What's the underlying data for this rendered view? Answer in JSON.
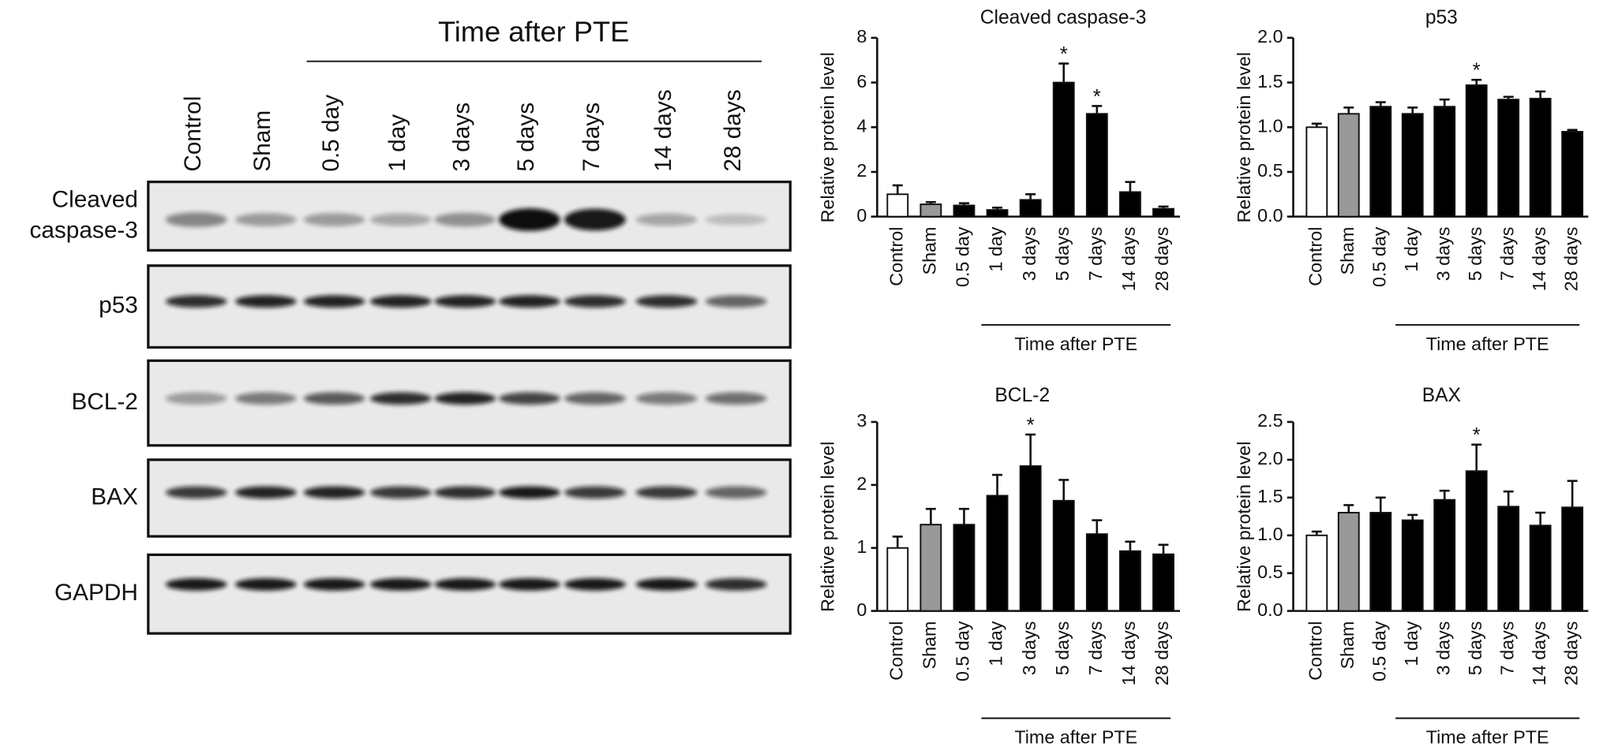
{
  "blot": {
    "header": "Time after PTE",
    "lanes": [
      "Control",
      "Sham",
      "0.5 day",
      "1 day",
      "3 days",
      "5 days",
      "7 days",
      "14 days",
      "28 days"
    ],
    "rows": [
      [
        "Cleaved",
        "caspase-3"
      ],
      [
        "p53"
      ],
      [
        "BCL-2"
      ],
      [
        "BAX"
      ],
      [
        "GAPDH"
      ]
    ]
  },
  "chart_data": [
    {
      "type": "bar",
      "title": "Cleaved caspase-3",
      "ylabel": "Relative protein level",
      "xlabel": "Time after PTE",
      "categories": [
        "Control",
        "Sham",
        "0.5 day",
        "1 day",
        "3 days",
        "5 days",
        "7 days",
        "14 days",
        "28 days"
      ],
      "values": [
        1.0,
        0.55,
        0.5,
        0.3,
        0.75,
        6.0,
        4.6,
        1.1,
        0.35
      ],
      "errors": [
        0.4,
        0.1,
        0.1,
        0.1,
        0.25,
        0.85,
        0.35,
        0.45,
        0.1
      ],
      "colors": [
        "#ffffff",
        "#999999",
        "#000000",
        "#000000",
        "#000000",
        "#000000",
        "#000000",
        "#000000",
        "#000000"
      ],
      "ylim": [
        0,
        8
      ],
      "yticks": [
        0,
        2,
        4,
        6,
        8
      ],
      "annotations": [
        {
          "text": "*",
          "category": "5 days"
        },
        {
          "text": "*",
          "category": "7 days"
        }
      ]
    },
    {
      "type": "bar",
      "title": "p53",
      "ylabel": "Relative protein level",
      "xlabel": "Time after PTE",
      "categories": [
        "Control",
        "Sham",
        "0.5 day",
        "1 day",
        "3 days",
        "5 days",
        "7 days",
        "14 days",
        "28 days"
      ],
      "values": [
        1.0,
        1.15,
        1.23,
        1.15,
        1.23,
        1.47,
        1.31,
        1.32,
        0.95
      ],
      "errors": [
        0.04,
        0.07,
        0.05,
        0.07,
        0.08,
        0.06,
        0.03,
        0.08,
        0.02
      ],
      "colors": [
        "#ffffff",
        "#999999",
        "#000000",
        "#000000",
        "#000000",
        "#000000",
        "#000000",
        "#000000",
        "#000000"
      ],
      "ylim": [
        0,
        2
      ],
      "yticks": [
        {
          "value": 0,
          "label": "0.0"
        },
        {
          "value": 0.5,
          "label": "0.5"
        },
        {
          "value": 1,
          "label": "1.0"
        },
        {
          "value": 1.5,
          "label": "1.5"
        },
        {
          "value": 2,
          "label": "2.0"
        }
      ],
      "annotations": [
        {
          "text": "*",
          "category": "5 days"
        }
      ]
    },
    {
      "type": "bar",
      "title": "BCL-2",
      "ylabel": "Relative protein level",
      "xlabel": "Time after PTE",
      "categories": [
        "Control",
        "Sham",
        "0.5 day",
        "1 day",
        "3 days",
        "5 days",
        "7 days",
        "14 days",
        "28 days"
      ],
      "values": [
        1.0,
        1.37,
        1.37,
        1.83,
        2.3,
        1.75,
        1.22,
        0.95,
        0.9
      ],
      "errors": [
        0.18,
        0.25,
        0.25,
        0.33,
        0.5,
        0.33,
        0.22,
        0.15,
        0.15
      ],
      "colors": [
        "#ffffff",
        "#999999",
        "#000000",
        "#000000",
        "#000000",
        "#000000",
        "#000000",
        "#000000",
        "#000000"
      ],
      "ylim": [
        0,
        3
      ],
      "yticks": [
        0,
        1,
        2,
        3
      ],
      "annotations": [
        {
          "text": "*",
          "category": "3 days"
        }
      ]
    },
    {
      "type": "bar",
      "title": "BAX",
      "ylabel": "Relative protein level",
      "xlabel": "Time after PTE",
      "categories": [
        "Control",
        "Sham",
        "0.5 day",
        "1 day",
        "3 days",
        "5 days",
        "7 days",
        "14 days",
        "28 days"
      ],
      "values": [
        1.0,
        1.3,
        1.3,
        1.2,
        1.47,
        1.85,
        1.38,
        1.13,
        1.37
      ],
      "errors": [
        0.05,
        0.1,
        0.2,
        0.07,
        0.12,
        0.35,
        0.2,
        0.17,
        0.35
      ],
      "colors": [
        "#ffffff",
        "#999999",
        "#000000",
        "#000000",
        "#000000",
        "#000000",
        "#000000",
        "#000000",
        "#000000"
      ],
      "ylim": [
        0,
        2.5
      ],
      "yticks": [
        {
          "value": 0,
          "label": "0.0"
        },
        {
          "value": 0.5,
          "label": "0.5"
        },
        {
          "value": 1,
          "label": "1.0"
        },
        {
          "value": 1.5,
          "label": "1.5"
        },
        {
          "value": 2,
          "label": "2.0"
        },
        {
          "value": 2.5,
          "label": "2.5"
        }
      ],
      "annotations": [
        {
          "text": "*",
          "category": "5 days"
        }
      ]
    }
  ]
}
